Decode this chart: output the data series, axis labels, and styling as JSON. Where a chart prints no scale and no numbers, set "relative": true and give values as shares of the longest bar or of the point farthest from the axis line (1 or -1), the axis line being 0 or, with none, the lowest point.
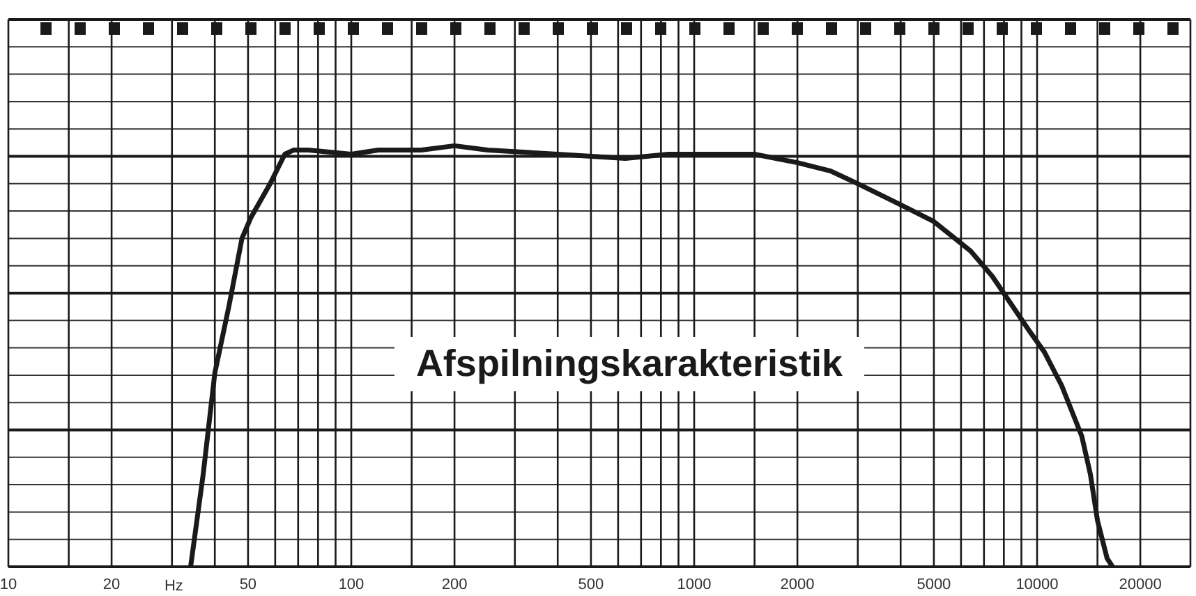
{
  "chart_data": {
    "type": "line",
    "title": "Afspilningskarakteristik",
    "xlabel": "Hz",
    "relative": true,
    "log": "x",
    "grid": true,
    "color": "#1a1a1a",
    "xlim": [
      10,
      28000
    ],
    "xticks": [
      10,
      {
        "value": 15,
        "label": null
      },
      20,
      {
        "value": 30,
        "label": null
      },
      {
        "value": 40,
        "label": null
      },
      50,
      {
        "value": 60,
        "label": null
      },
      {
        "value": 70,
        "label": null
      },
      {
        "value": 80,
        "label": null
      },
      {
        "value": 90,
        "label": null
      },
      100,
      {
        "value": 150,
        "label": null
      },
      200,
      {
        "value": 300,
        "label": null
      },
      {
        "value": 400,
        "label": null
      },
      500,
      {
        "value": 600,
        "label": null
      },
      {
        "value": 700,
        "label": null
      },
      {
        "value": 800,
        "label": null
      },
      {
        "value": 900,
        "label": null
      },
      1000,
      {
        "value": 1500,
        "label": null
      },
      2000,
      {
        "value": 3000,
        "label": null
      },
      {
        "value": 4000,
        "label": null
      },
      5000,
      {
        "value": 6000,
        "label": null
      },
      {
        "value": 7000,
        "label": null
      },
      {
        "value": 8000,
        "label": null
      },
      {
        "value": 9000,
        "label": null
      },
      10000,
      {
        "value": 15000,
        "label": null
      },
      20000
    ],
    "x": [
      34,
      37,
      40,
      44,
      48,
      51,
      58,
      64,
      68,
      75,
      100,
      120,
      160,
      200,
      250,
      400,
      630,
      840,
      1140,
      1500,
      2000,
      2500,
      3000,
      4000,
      5000,
      6400,
      7400,
      9500,
      10500,
      11800,
      13500,
      14300,
      15000,
      16000,
      16600
    ],
    "values": [
      0,
      0.22,
      0.46,
      0.62,
      0.78,
      0.83,
      0.91,
      0.98,
      0.99,
      0.99,
      0.98,
      0.99,
      0.99,
      1.0,
      0.99,
      0.98,
      0.97,
      0.98,
      0.98,
      0.98,
      0.96,
      0.94,
      0.91,
      0.86,
      0.82,
      0.75,
      0.69,
      0.56,
      0.51,
      0.43,
      0.31,
      0.22,
      0.11,
      0.02,
      0
    ]
  }
}
